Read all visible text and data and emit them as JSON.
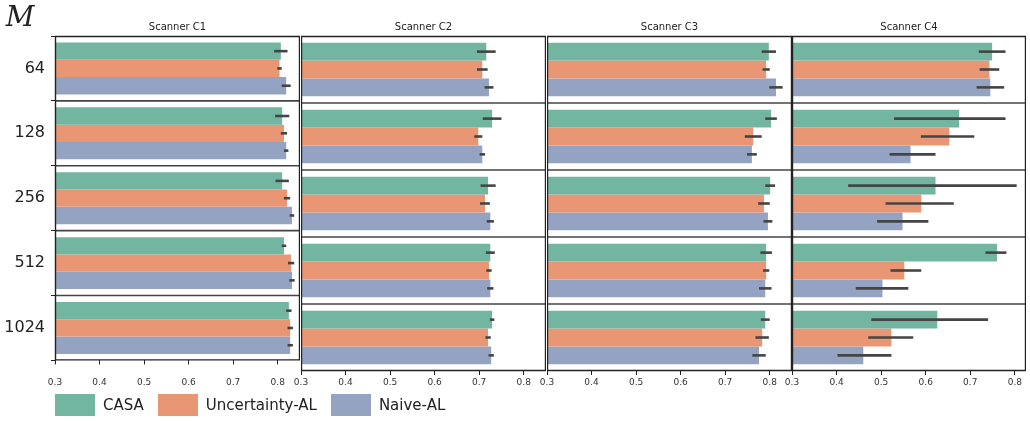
{
  "chart_data": [
    {
      "type": "bar",
      "orientation": "horizontal",
      "title": "Scanner C1",
      "ylabel": "M",
      "categories": [
        "64",
        "128",
        "256",
        "512",
        "1024"
      ],
      "xlim": [
        0.3,
        0.85
      ],
      "xticks": [
        0.3,
        0.4,
        0.5,
        0.6,
        0.7,
        0.8
      ],
      "legend": "bottom",
      "series": [
        {
          "name": "CASA",
          "color": "#72b6a1",
          "values": [
            0.807,
            0.81,
            0.81,
            0.814,
            0.825
          ],
          "errors": [
            0.015,
            0.016,
            0.015,
            0.005,
            0.006
          ]
        },
        {
          "name": "Uncertainty-AL",
          "color": "#e99675",
          "values": [
            0.804,
            0.814,
            0.821,
            0.83,
            0.828
          ],
          "errors": [
            0.005,
            0.007,
            0.007,
            0.007,
            0.006
          ]
        },
        {
          "name": "Naive-AL",
          "color": "#95a3c3",
          "values": [
            0.819,
            0.819,
            0.832,
            0.832,
            0.828
          ],
          "errors": [
            0.01,
            0.005,
            0.005,
            0.006,
            0.006
          ]
        }
      ]
    },
    {
      "type": "bar",
      "orientation": "horizontal",
      "title": "Scanner C2",
      "categories": [
        "64",
        "128",
        "256",
        "512",
        "1024"
      ],
      "xlim": [
        0.3,
        0.85
      ],
      "xticks": [
        0.3,
        0.4,
        0.5,
        0.6,
        0.7,
        0.8
      ],
      "tick_labels": "x",
      "series": [
        {
          "color": "#72b6a1",
          "values": [
            0.716,
            0.729,
            0.72,
            0.725,
            0.729
          ],
          "errors": [
            0.021,
            0.021,
            0.017,
            0.01,
            0.005
          ]
        },
        {
          "color": "#e99675",
          "values": [
            0.707,
            0.698,
            0.713,
            0.722,
            0.72
          ],
          "errors": [
            0.012,
            0.009,
            0.011,
            0.006,
            0.006
          ]
        },
        {
          "color": "#95a3c3",
          "values": [
            0.722,
            0.707,
            0.725,
            0.725,
            0.727
          ],
          "errors": [
            0.01,
            0.006,
            0.008,
            0.007,
            0.006
          ]
        }
      ]
    },
    {
      "type": "bar",
      "orientation": "horizontal",
      "title": "Scanner C3",
      "categories": [
        "64",
        "128",
        "256",
        "512",
        "1024"
      ],
      "xlim": [
        0.3,
        0.85
      ],
      "xticks": [
        0.3,
        0.4,
        0.5,
        0.6,
        0.7,
        0.8
      ],
      "tick_labels": "x",
      "series": [
        {
          "color": "#72b6a1",
          "values": [
            0.798,
            0.803,
            0.801,
            0.792,
            0.79
          ],
          "errors": [
            0.016,
            0.013,
            0.011,
            0.013,
            0.01
          ]
        },
        {
          "color": "#e99675",
          "values": [
            0.792,
            0.763,
            0.787,
            0.792,
            0.783
          ],
          "errors": [
            0.008,
            0.019,
            0.013,
            0.007,
            0.015
          ]
        },
        {
          "color": "#95a3c3",
          "values": [
            0.814,
            0.76,
            0.796,
            0.79,
            0.776
          ],
          "errors": [
            0.015,
            0.011,
            0.01,
            0.014,
            0.015
          ]
        }
      ]
    },
    {
      "type": "bar",
      "orientation": "horizontal",
      "title": "Scanner C4",
      "categories": [
        "64",
        "128",
        "256",
        "512",
        "1024"
      ],
      "xlim": [
        0.3,
        0.825
      ],
      "xticks": [
        0.3,
        0.4,
        0.5,
        0.6,
        0.7,
        0.8
      ],
      "tick_labels": "x",
      "series": [
        {
          "color": "#72b6a1",
          "values": [
            0.749,
            0.675,
            0.622,
            0.76,
            0.626
          ],
          "errors": [
            0.03,
            [
              0.529,
              0.779
            ],
            [
              0.426,
              0.804
            ],
            [
              0.734,
              0.781
            ],
            [
              0.478,
              0.74
            ]
          ]
        },
        {
          "color": "#e99675",
          "values": [
            0.743,
            0.653,
            0.59,
            0.552,
            0.523
          ],
          "errors": [
            0.022,
            [
              0.589,
              0.709
            ],
            [
              0.51,
              0.663
            ],
            [
              0.521,
              0.59
            ],
            [
              0.471,
              0.572
            ]
          ]
        },
        {
          "color": "#95a3c3",
          "values": [
            0.745,
            0.566,
            0.548,
            0.503,
            0.46
          ],
          "errors": [
            0.031,
            [
              0.519,
              0.622
            ],
            [
              0.491,
              0.606
            ],
            [
              0.443,
              0.561
            ],
            [
              0.402,
              0.523
            ]
          ]
        }
      ]
    }
  ]
}
